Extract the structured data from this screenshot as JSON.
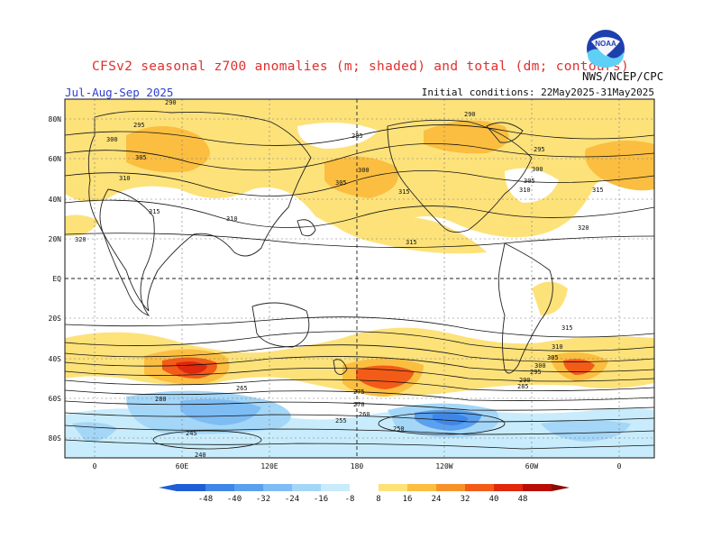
{
  "title": "CFSv2 seasonal z700 anomalies (m; shaded) and total (dm; contours)",
  "period": "Jul-Aug-Sep 2025",
  "initial_conditions": "Initial conditions: 22May2025-31May2025",
  "agency": "NWS/NCEP/CPC",
  "logo_text": "NOAA",
  "lat_labels": [
    "80N",
    "60N",
    "40N",
    "20N",
    "EQ",
    "20S",
    "40S",
    "60S",
    "80S"
  ],
  "lon_labels": [
    "0",
    "60E",
    "120E",
    "180",
    "120W",
    "60W",
    "0"
  ],
  "colorbar": {
    "labels": [
      "-48",
      "-40",
      "-32",
      "-24",
      "-16",
      "-8",
      "8",
      "16",
      "24",
      "32",
      "40",
      "48"
    ],
    "colors": [
      "#1f5fd6",
      "#3f86e6",
      "#5aa0ee",
      "#7ebcf4",
      "#a4d6f7",
      "#c8ecfb",
      "#ffffff",
      "#fde27a",
      "#fbbe40",
      "#f7922a",
      "#f35b18",
      "#e0280c",
      "#b80e06"
    ]
  },
  "contour_labels": [
    {
      "v": "290"
    },
    {
      "v": "295"
    },
    {
      "v": "300"
    },
    {
      "v": "305"
    },
    {
      "v": "310"
    },
    {
      "v": "315"
    },
    {
      "v": "310"
    },
    {
      "v": "285"
    },
    {
      "v": "300"
    },
    {
      "v": "305"
    },
    {
      "v": "315"
    },
    {
      "v": "290"
    },
    {
      "v": "295"
    },
    {
      "v": "300"
    },
    {
      "v": "305"
    },
    {
      "v": "310"
    },
    {
      "v": "315"
    },
    {
      "v": "320"
    },
    {
      "v": "320"
    },
    {
      "v": "315"
    },
    {
      "v": "315"
    },
    {
      "v": "310"
    },
    {
      "v": "305"
    },
    {
      "v": "300"
    },
    {
      "v": "295"
    },
    {
      "v": "290"
    },
    {
      "v": "285"
    },
    {
      "v": "280"
    },
    {
      "v": "275"
    },
    {
      "v": "270"
    },
    {
      "v": "265"
    },
    {
      "v": "260"
    },
    {
      "v": "255"
    },
    {
      "v": "250"
    },
    {
      "v": "245"
    },
    {
      "v": "240"
    }
  ]
}
